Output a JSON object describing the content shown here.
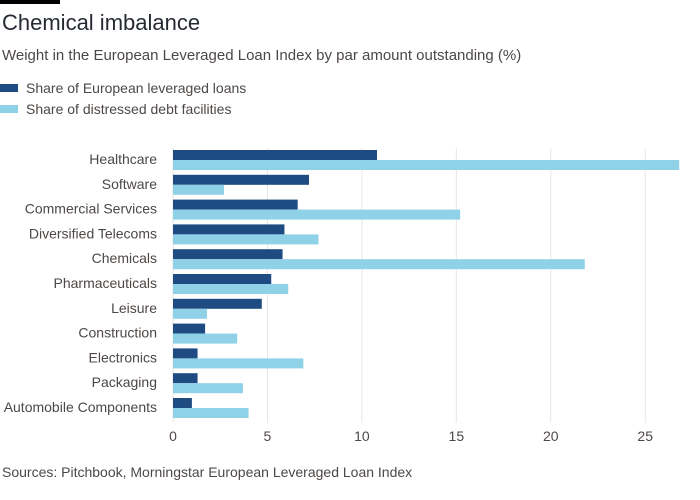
{
  "header": {
    "title": "Chemical imbalance",
    "subtitle": "Weight in the European Leveraged Loan Index by par amount outstanding (%)"
  },
  "legend": [
    {
      "label": "Share of European leveraged loans",
      "color": "#1e4b82"
    },
    {
      "label": "Share of distressed debt facilities",
      "color": "#8fd2e8"
    }
  ],
  "footer": {
    "source": "Sources: Pitchbook, Morningstar European Leveraged Loan Index"
  },
  "chart_data": {
    "type": "bar",
    "orientation": "horizontal",
    "title": "Chemical imbalance",
    "subtitle": "Weight in the European Leveraged Loan Index by par amount outstanding (%)",
    "xlabel": "",
    "ylabel": "",
    "xlim": [
      0,
      27
    ],
    "xticks": [
      0,
      5,
      10,
      15,
      20,
      25
    ],
    "grid": true,
    "legend_position": "top-left",
    "categories": [
      "Healthcare",
      "Software",
      "Commercial Services",
      "Diversified Telecoms",
      "Chemicals",
      "Pharmaceuticals",
      "Leisure",
      "Construction",
      "Electronics",
      "Packaging",
      "Automobile Components"
    ],
    "series": [
      {
        "name": "Share of European leveraged loans",
        "color": "#1e4b82",
        "values": [
          10.8,
          7.2,
          6.6,
          5.9,
          5.8,
          5.2,
          4.7,
          1.7,
          1.3,
          1.3,
          1.0
        ]
      },
      {
        "name": "Share of distressed debt facilities",
        "color": "#8fd2e8",
        "values": [
          26.8,
          2.7,
          15.2,
          7.7,
          21.8,
          6.1,
          1.8,
          3.4,
          6.9,
          3.7,
          4.0
        ]
      }
    ]
  }
}
